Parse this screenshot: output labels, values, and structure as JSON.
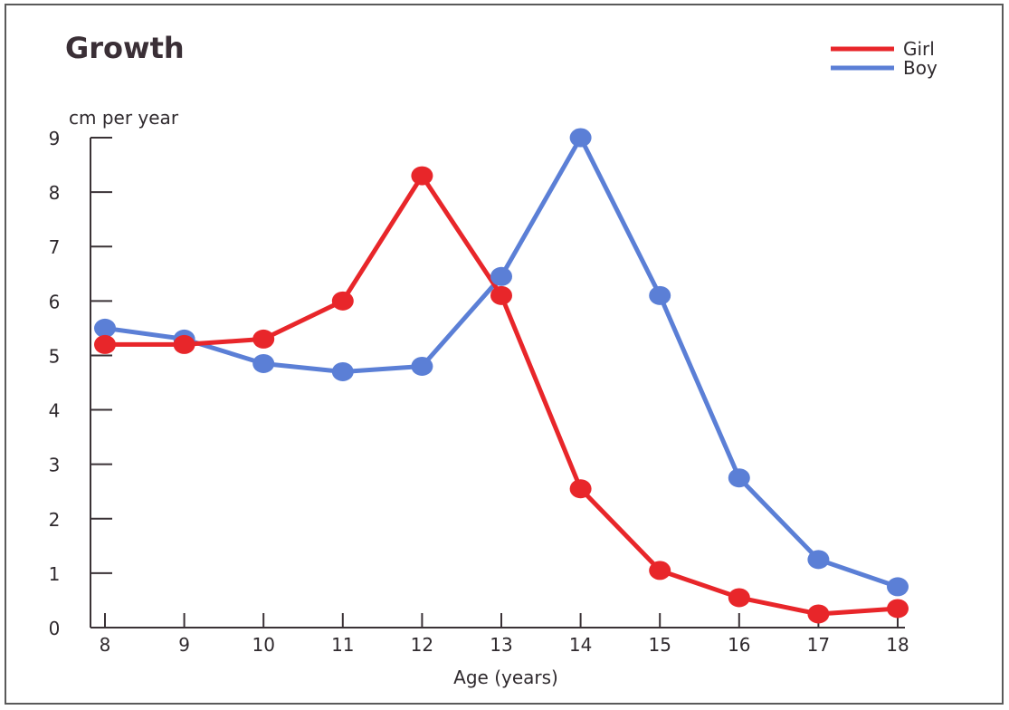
{
  "chart_data": {
    "type": "line",
    "title": "Growth",
    "xlabel": "Age (years)",
    "ylabel": "cm per year",
    "x": [
      8,
      9,
      10,
      11,
      12,
      13,
      14,
      15,
      16,
      17,
      18
    ],
    "ylim": [
      0,
      9
    ],
    "xlim": [
      8,
      18
    ],
    "yticks": [
      0,
      1,
      2,
      3,
      4,
      5,
      6,
      7,
      8,
      9
    ],
    "grid": false,
    "legend_position": "top-right",
    "series": [
      {
        "name": "Girl",
        "color": "#e8262a",
        "values": [
          5.2,
          5.2,
          5.3,
          6.0,
          8.3,
          6.1,
          2.55,
          1.05,
          0.55,
          0.25,
          0.35
        ]
      },
      {
        "name": "Boy",
        "color": "#5b7fd6",
        "values": [
          5.5,
          5.3,
          4.85,
          4.7,
          4.8,
          6.45,
          9.0,
          6.1,
          2.75,
          1.25,
          0.75
        ]
      }
    ]
  }
}
